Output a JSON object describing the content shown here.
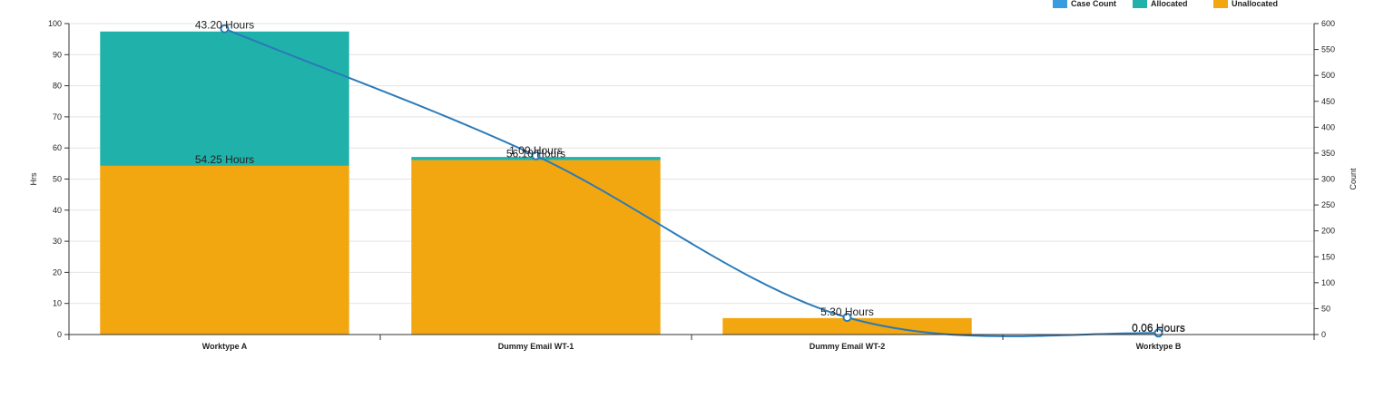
{
  "chart_data": {
    "type": "bar",
    "stacked": true,
    "categories": [
      "Worktype A",
      "Dummy Email WT-1",
      "Dummy Email WT-2",
      "Worktype B"
    ],
    "series": [
      {
        "name": "Unallocated",
        "values": [
          54.25,
          56.1,
          5.3,
          0.06
        ],
        "color": "#f2a60f",
        "labels": [
          "54.25 Hours",
          "56.10 Hours",
          "5.30 Hours",
          "0.06 Hours"
        ]
      },
      {
        "name": "Allocated",
        "values": [
          43.2,
          1.0,
          0,
          0.06
        ],
        "color": "#20b2aa",
        "labels": [
          "43.20 Hours",
          "1.00 Hours",
          "",
          "0.06 Hours"
        ]
      }
    ],
    "line_series": {
      "name": "Case Count",
      "values": [
        590,
        345,
        33,
        3
      ],
      "color": "#2a7ab8",
      "axis": "right"
    },
    "ylabel": "Hrs",
    "ylabel_right": "Count",
    "ylim": [
      0,
      100
    ],
    "ylim_right": [
      0,
      600
    ],
    "yticks": [
      0,
      10,
      20,
      30,
      40,
      50,
      60,
      70,
      80,
      90,
      100
    ],
    "yticks_right": [
      0,
      50,
      100,
      150,
      200,
      250,
      300,
      350,
      400,
      450,
      500,
      550,
      600
    ],
    "legend": [
      {
        "label": "Case Count",
        "color": "#3b9bdf"
      },
      {
        "label": "Allocated",
        "color": "#20b2aa"
      },
      {
        "label": "Unallocated",
        "color": "#f2a60f"
      }
    ],
    "legend_position": "top-right",
    "grid": true
  }
}
